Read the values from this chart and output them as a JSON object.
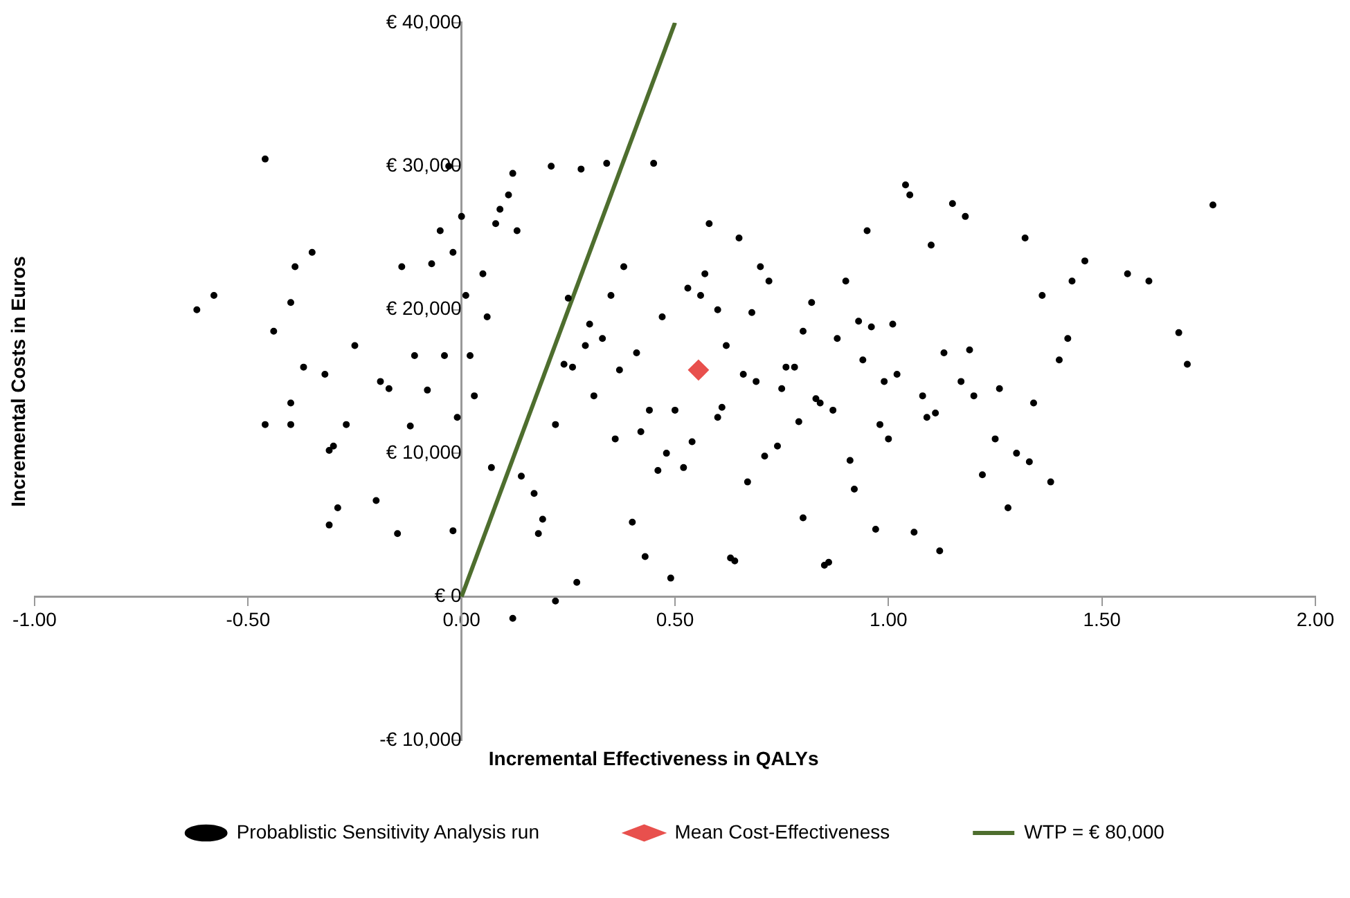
{
  "chart_data": {
    "type": "scatter",
    "xlabel": "Incremental Effectiveness in QALYs",
    "ylabel": "Incremental Costs in Euros",
    "xlim": [
      -1,
      2
    ],
    "xticks": [
      {
        "value": -1,
        "label": "-1.00"
      },
      {
        "value": -0.5,
        "label": "-0.50"
      },
      {
        "value": 0,
        "label": "0.00"
      },
      {
        "value": 0.5,
        "label": "0.50"
      },
      {
        "value": 1,
        "label": "1.00"
      },
      {
        "value": 1.5,
        "label": "1.50"
      },
      {
        "value": 2,
        "label": "2.00"
      }
    ],
    "ylim": [
      -10000,
      40000
    ],
    "yticks": [
      {
        "value": -10000,
        "label": "-€ 10,000"
      },
      {
        "value": 0,
        "label": "€ 0"
      },
      {
        "value": 10000,
        "label": "€ 10,000"
      },
      {
        "value": 20000,
        "label": "€ 20,000"
      },
      {
        "value": 30000,
        "label": "€ 30,000"
      },
      {
        "value": 40000,
        "label": "€ 40,000"
      }
    ],
    "grid": false,
    "legend": "bottom",
    "series": [
      {
        "name": "Probablistic Sensitivity Analysis run",
        "marker": "circle",
        "color": "#000000",
        "x": [
          -0.62,
          -0.58,
          -0.46,
          -0.44,
          -0.4,
          -0.39,
          -0.37,
          -0.46,
          -0.4,
          -0.4,
          -0.35,
          -0.32,
          -0.31,
          -0.3,
          -0.29,
          -0.31,
          -0.27,
          -0.25,
          -0.2,
          -0.19,
          -0.17,
          -0.15,
          -0.14,
          -0.12,
          -0.11,
          -0.07,
          -0.08,
          -0.05,
          -0.04,
          -0.02,
          -0.01,
          -0.02,
          -0.03,
          0.0,
          0.01,
          0.02,
          0.03,
          0.05,
          0.06,
          0.07,
          0.08,
          0.09,
          0.11,
          0.12,
          0.13,
          0.14,
          0.17,
          0.18,
          0.19,
          0.12,
          0.22,
          0.27,
          0.28,
          0.34,
          0.21,
          0.25,
          0.3,
          0.4,
          0.43,
          0.49,
          0.5,
          0.6,
          0.65,
          0.7,
          0.75,
          0.8,
          0.85,
          0.86,
          0.64,
          0.63,
          0.8,
          0.9,
          0.95,
          1.0,
          1.04,
          1.05,
          1.1,
          1.12,
          1.06,
          1.15,
          1.18,
          1.2,
          1.22,
          1.25,
          1.3,
          1.32,
          1.33,
          1.36,
          1.38,
          1.4,
          1.42,
          1.43,
          1.46,
          1.56,
          1.61,
          1.68,
          1.7,
          1.76,
          1.28,
          1.26,
          1.34,
          0.92,
          0.97,
          1.02,
          0.58,
          0.45,
          0.38,
          0.22,
          0.26,
          0.31,
          0.33,
          0.36,
          0.41,
          0.44,
          0.47,
          0.52,
          0.56,
          0.6,
          0.62,
          0.67,
          0.69,
          0.72,
          0.74,
          0.78,
          0.82,
          0.84,
          0.88,
          0.91,
          0.94,
          0.98,
          1.01,
          1.08,
          1.13,
          1.17,
          0.35,
          0.48,
          0.57,
          0.66,
          0.76,
          0.87,
          0.99,
          1.09,
          0.29,
          0.42,
          0.53,
          0.71,
          0.83,
          0.93,
          1.11,
          0.37,
          0.54,
          0.68,
          0.79,
          0.96,
          1.19,
          0.24,
          0.46,
          0.61
        ],
        "values": [
          20000,
          21000,
          30500,
          18500,
          20500,
          23000,
          16000,
          12000,
          12000,
          13500,
          24000,
          15500,
          10200,
          10500,
          6200,
          5000,
          12000,
          17500,
          6700,
          15000,
          14500,
          4400,
          23000,
          11900,
          16800,
          23200,
          14400,
          25500,
          16800,
          24000,
          12500,
          4600,
          30000,
          26500,
          21000,
          16800,
          14000,
          22500,
          19500,
          9000,
          26000,
          27000,
          28000,
          29500,
          25500,
          8400,
          7200,
          4400,
          5400,
          -1500,
          -300,
          1000,
          29800,
          30200,
          30000,
          20800,
          19000,
          5200,
          2800,
          1300,
          13000,
          20000,
          25000,
          23000,
          14500,
          18500,
          2200,
          2400,
          2500,
          2700,
          5500,
          22000,
          25500,
          11000,
          28700,
          28000,
          24500,
          3200,
          4500,
          27400,
          26500,
          14000,
          8500,
          11000,
          10000,
          25000,
          9400,
          21000,
          8000,
          16500,
          18000,
          22000,
          23400,
          22500,
          22000,
          18400,
          16200,
          27300,
          6200,
          14500,
          13500,
          7500,
          4700,
          15500,
          26000,
          30200,
          23000,
          12000,
          16000,
          14000,
          18000,
          11000,
          17000,
          13000,
          19500,
          9000,
          21000,
          12500,
          17500,
          8000,
          15000,
          22000,
          10500,
          16000,
          20500,
          13500,
          18000,
          9500,
          16500,
          12000,
          19000,
          14000,
          17000,
          15000,
          21000,
          10000,
          22500,
          15500,
          16000,
          13000,
          15000,
          12500,
          17500,
          11500,
          21500,
          9800,
          13800,
          19200,
          12800,
          15800,
          10800,
          19800,
          12200,
          18800,
          17200,
          16200,
          8800,
          13200
        ],
        "line_style": "none"
      },
      {
        "name": "Mean Cost-Effectiveness",
        "type": "scatter",
        "marker": "diamond",
        "color": "#e8504d",
        "x": [
          0.555
        ],
        "values": [
          15800
        ]
      },
      {
        "name": "WTP = € 80,000",
        "type": "line",
        "marker": "none",
        "line_style": "solid",
        "color": "#4e6e2e",
        "x": [
          0,
          0.5
        ],
        "values": [
          0,
          40000
        ]
      }
    ]
  }
}
